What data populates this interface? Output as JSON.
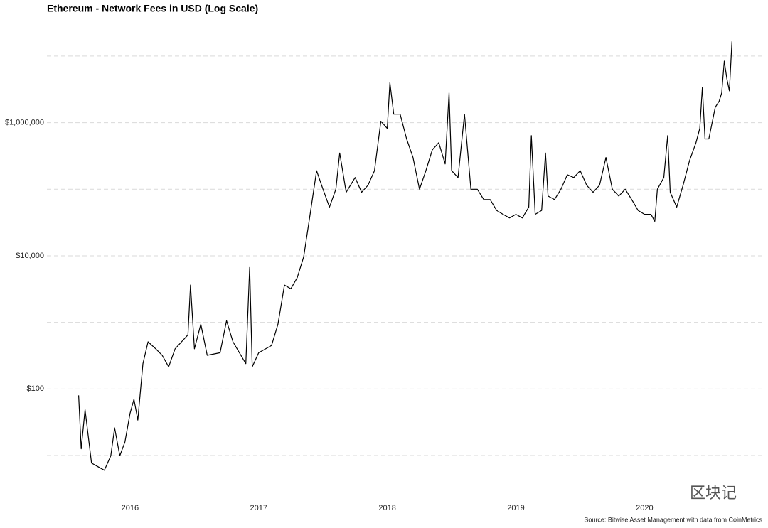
{
  "chart_data": {
    "type": "line",
    "title": "Ethereum - Network Fees in USD (Log Scale)",
    "source": "Source: Bitwise Asset Management with data from CoinMetrics",
    "watermark": "区块记",
    "log_y": true,
    "grid": true,
    "xlim": [
      2015.5,
      2020.75
    ],
    "xticks": [
      2016,
      2017,
      2018,
      2019,
      2020
    ],
    "ylim": [
      3,
      18000000
    ],
    "yticks": [
      {
        "value": 100,
        "label": "$100"
      },
      {
        "value": 10000,
        "label": "$10,000"
      },
      {
        "value": 1000000,
        "label": "$1,000,000"
      }
    ],
    "minor_yticks": [
      10,
      1000,
      100000,
      10000000
    ],
    "series": [
      {
        "color": "#000000",
        "x": [
          2015.6,
          2015.62,
          2015.65,
          2015.7,
          2015.75,
          2015.8,
          2015.85,
          2015.88,
          2015.92,
          2015.96,
          2016.0,
          2016.03,
          2016.06,
          2016.1,
          2016.14,
          2016.2,
          2016.25,
          2016.3,
          2016.35,
          2016.4,
          2016.45,
          2016.47,
          2016.5,
          2016.55,
          2016.6,
          2016.7,
          2016.75,
          2016.8,
          2016.85,
          2016.9,
          2016.93,
          2016.95,
          2017.0,
          2017.1,
          2017.15,
          2017.2,
          2017.25,
          2017.3,
          2017.35,
          2017.4,
          2017.45,
          2017.5,
          2017.55,
          2017.6,
          2017.63,
          2017.68,
          2017.75,
          2017.8,
          2017.85,
          2017.9,
          2017.95,
          2018.0,
          2018.02,
          2018.05,
          2018.1,
          2018.15,
          2018.2,
          2018.25,
          2018.3,
          2018.35,
          2018.4,
          2018.45,
          2018.48,
          2018.5,
          2018.55,
          2018.6,
          2018.65,
          2018.7,
          2018.75,
          2018.8,
          2018.85,
          2018.9,
          2018.95,
          2019.0,
          2019.05,
          2019.1,
          2019.12,
          2019.15,
          2019.2,
          2019.23,
          2019.25,
          2019.3,
          2019.35,
          2019.4,
          2019.45,
          2019.5,
          2019.55,
          2019.6,
          2019.65,
          2019.7,
          2019.75,
          2019.8,
          2019.85,
          2019.9,
          2019.95,
          2020.0,
          2020.05,
          2020.08,
          2020.1,
          2020.15,
          2020.18,
          2020.2,
          2020.25,
          2020.3,
          2020.35,
          2020.4,
          2020.43,
          2020.45,
          2020.47,
          2020.5,
          2020.55,
          2020.58,
          2020.6,
          2020.62,
          2020.64,
          2020.66,
          2020.68
        ],
        "values": [
          80,
          12.6,
          49,
          7.7,
          6.8,
          6,
          9.9,
          26,
          9.9,
          16,
          43,
          70,
          34,
          240,
          510,
          400,
          320,
          215,
          400,
          510,
          650,
          3640,
          400,
          940,
          320,
          350,
          1060,
          510,
          350,
          240,
          6700,
          215,
          350,
          450,
          940,
          3640,
          3200,
          4700,
          9700,
          42000,
          190000,
          100000,
          54000,
          100000,
          350000,
          90000,
          150000,
          90000,
          115000,
          190000,
          1050000,
          820000,
          4000000,
          1340000,
          1340000,
          570000,
          300000,
          100000,
          190000,
          390000,
          500000,
          240000,
          2800000,
          190000,
          150000,
          1340000,
          100000,
          100000,
          70000,
          70000,
          48000,
          42000,
          37000,
          42000,
          37000,
          54000,
          640000,
          42000,
          48000,
          350000,
          79000,
          70000,
          100000,
          165000,
          150000,
          190000,
          115000,
          90000,
          115000,
          300000,
          100000,
          79000,
          100000,
          70000,
          48000,
          42000,
          42000,
          33000,
          100000,
          150000,
          640000,
          90000,
          54000,
          115000,
          270000,
          500000,
          820000,
          3400000,
          570000,
          570000,
          1700000,
          2100000,
          2800000,
          8400000,
          4600000,
          3000000,
          16600000
        ]
      }
    ]
  }
}
